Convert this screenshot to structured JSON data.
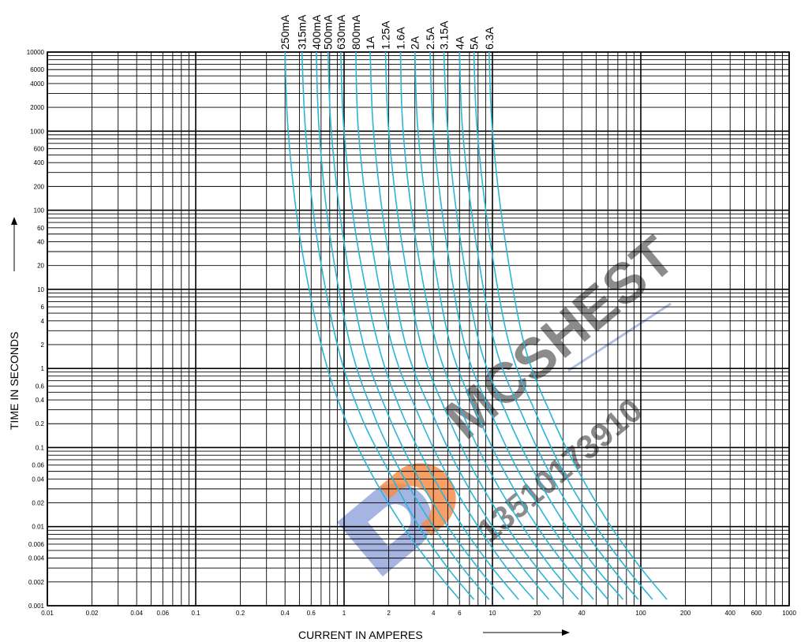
{
  "chart_data": {
    "type": "line",
    "title": "",
    "xlabel": "CURRENT IN AMPERES",
    "ylabel": "TIME IN SECONDS",
    "x_scale": "log",
    "y_scale": "log",
    "xlim": [
      0.01,
      1000
    ],
    "ylim": [
      0.001,
      10000
    ],
    "grid": true,
    "x_tick_labels": [
      "0.01",
      "0.02",
      "0.04",
      "0.06",
      "0.1",
      "0.2",
      "0.4",
      "0.6",
      "1",
      "2",
      "4",
      "6",
      "10",
      "20",
      "40",
      "100",
      "200",
      "400",
      "600",
      "1000"
    ],
    "y_tick_labels": [
      "10000",
      "6000",
      "4000",
      "2000",
      "1000",
      "600",
      "400",
      "200",
      "100",
      "60",
      "40",
      "20",
      "10",
      "6",
      "4",
      "2",
      "1",
      "0.6",
      "0.4",
      "0.2",
      "0.1",
      "0.06",
      "0.04",
      "0.02",
      "0.01",
      "0.006",
      "0.004",
      "0.002",
      "0.001"
    ],
    "curve_color": "#2bb5d8",
    "series": [
      {
        "name": "250mA",
        "x": [
          0.4,
          0.42,
          0.5,
          0.7,
          1.0,
          1.5,
          2.5,
          4.0,
          6.0
        ],
        "y": [
          10000,
          1000,
          50,
          2,
          0.25,
          0.05,
          0.01,
          0.003,
          0.0012
        ]
      },
      {
        "name": "315mA",
        "x": [
          0.52,
          0.55,
          0.65,
          0.9,
          1.3,
          2.0,
          3.2,
          5.0,
          7.5
        ],
        "y": [
          10000,
          1000,
          50,
          2,
          0.25,
          0.05,
          0.01,
          0.003,
          0.0012
        ]
      },
      {
        "name": "400mA",
        "x": [
          0.65,
          0.68,
          0.8,
          1.1,
          1.6,
          2.4,
          4.0,
          6.3,
          9.5
        ],
        "y": [
          10000,
          1000,
          50,
          2,
          0.25,
          0.05,
          0.01,
          0.003,
          0.0012
        ]
      },
      {
        "name": "500mA",
        "x": [
          0.78,
          0.82,
          0.98,
          1.35,
          2.0,
          3.0,
          5.0,
          8.0,
          12.0
        ],
        "y": [
          10000,
          1000,
          50,
          2,
          0.25,
          0.05,
          0.01,
          0.003,
          0.0012
        ]
      },
      {
        "name": "630mA",
        "x": [
          0.95,
          1.0,
          1.2,
          1.7,
          2.5,
          3.8,
          6.3,
          10.0,
          15.0
        ],
        "y": [
          10000,
          1000,
          50,
          2,
          0.25,
          0.05,
          0.01,
          0.003,
          0.0012
        ]
      },
      {
        "name": "800mA",
        "x": [
          1.2,
          1.25,
          1.5,
          2.1,
          3.2,
          4.8,
          8.0,
          12.5,
          19.0
        ],
        "y": [
          10000,
          1000,
          50,
          2,
          0.25,
          0.05,
          0.01,
          0.003,
          0.0012
        ]
      },
      {
        "name": "1A",
        "x": [
          1.5,
          1.58,
          1.9,
          2.6,
          4.0,
          6.0,
          10.0,
          16.0,
          24.0
        ],
        "y": [
          10000,
          1000,
          50,
          2,
          0.25,
          0.05,
          0.01,
          0.003,
          0.0012
        ]
      },
      {
        "name": "1.25A",
        "x": [
          1.9,
          2.0,
          2.4,
          3.3,
          5.0,
          7.5,
          12.5,
          20.0,
          30.0
        ],
        "y": [
          10000,
          1000,
          50,
          2,
          0.25,
          0.05,
          0.01,
          0.003,
          0.0012
        ]
      },
      {
        "name": "1.6A",
        "x": [
          2.4,
          2.5,
          3.0,
          4.2,
          6.4,
          9.6,
          16.0,
          25.0,
          38.0
        ],
        "y": [
          10000,
          1000,
          50,
          2,
          0.25,
          0.05,
          0.01,
          0.003,
          0.0012
        ]
      },
      {
        "name": "2A",
        "x": [
          3.0,
          3.15,
          3.8,
          5.2,
          8.0,
          12.0,
          20.0,
          32.0,
          48.0
        ],
        "y": [
          10000,
          1000,
          50,
          2,
          0.25,
          0.05,
          0.01,
          0.003,
          0.0012
        ]
      },
      {
        "name": "2.5A",
        "x": [
          3.8,
          4.0,
          4.8,
          6.5,
          10.0,
          15.0,
          25.0,
          40.0,
          60.0
        ],
        "y": [
          10000,
          1000,
          50,
          2,
          0.25,
          0.05,
          0.01,
          0.003,
          0.0012
        ]
      },
      {
        "name": "3.15A",
        "x": [
          4.7,
          5.0,
          6.0,
          8.2,
          12.6,
          19.0,
          31.5,
          50.0,
          76.0
        ],
        "y": [
          10000,
          1000,
          50,
          2,
          0.25,
          0.05,
          0.01,
          0.003,
          0.0012
        ]
      },
      {
        "name": "4A",
        "x": [
          6.0,
          6.3,
          7.6,
          10.4,
          16.0,
          24.0,
          40.0,
          64.0,
          96.0
        ],
        "y": [
          10000,
          1000,
          50,
          2,
          0.25,
          0.05,
          0.01,
          0.003,
          0.0012
        ]
      },
      {
        "name": "5A",
        "x": [
          7.5,
          7.9,
          9.5,
          13.0,
          20.0,
          30.0,
          50.0,
          80.0,
          120.0
        ],
        "y": [
          10000,
          1000,
          50,
          2,
          0.25,
          0.05,
          0.01,
          0.003,
          0.0012
        ]
      },
      {
        "name": "6.3A",
        "x": [
          9.5,
          10.0,
          12.0,
          16.4,
          25.0,
          38.0,
          63.0,
          100.0,
          150.0
        ],
        "y": [
          10000,
          1000,
          50,
          2,
          0.25,
          0.05,
          0.01,
          0.003,
          0.0012
        ]
      }
    ]
  },
  "watermark": {
    "brand": "MCSHEST",
    "phone": "13510173910",
    "brand_color": "#3f5fc0",
    "accent_color": "#f47a2a"
  }
}
